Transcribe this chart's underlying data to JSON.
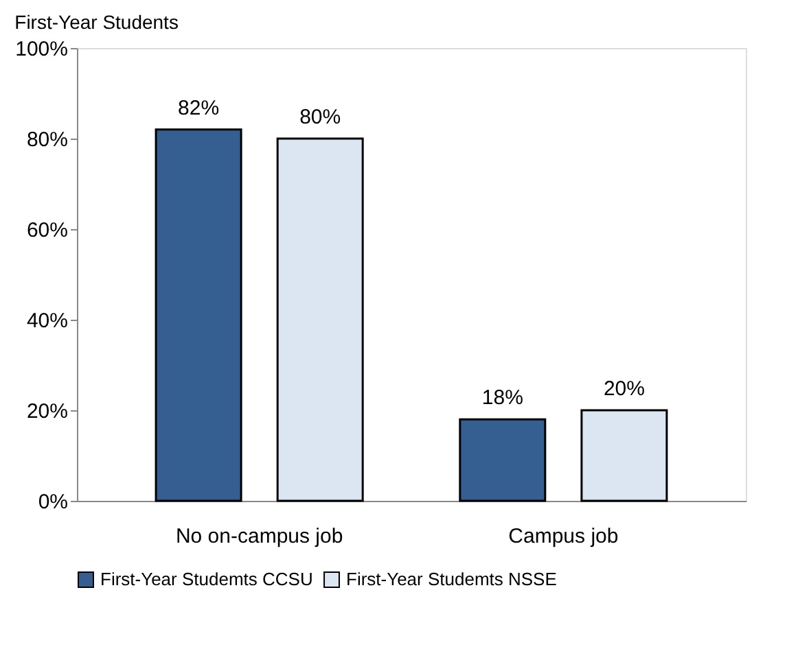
{
  "chart_data": {
    "type": "bar",
    "title": "First-Year Students",
    "categories": [
      "No on-campus job",
      "Campus job"
    ],
    "series": [
      {
        "name": "First-Year Studemts CCSU",
        "color": "#365f91",
        "values": [
          82,
          18
        ],
        "value_labels": [
          "82%",
          "18%"
        ]
      },
      {
        "name": "First-Year Studemts NSSE",
        "color": "#dce6f2",
        "values": [
          80,
          20
        ],
        "value_labels": [
          "80%",
          "20%"
        ]
      }
    ],
    "ylim": [
      0,
      100
    ],
    "yticks": [
      {
        "value": 0,
        "label": "0%"
      },
      {
        "value": 20,
        "label": "20%"
      },
      {
        "value": 40,
        "label": "40%"
      },
      {
        "value": 60,
        "label": "60%"
      },
      {
        "value": 80,
        "label": "80%"
      },
      {
        "value": 100,
        "label": "100%"
      }
    ],
    "grid": false,
    "legend": "bottom"
  }
}
